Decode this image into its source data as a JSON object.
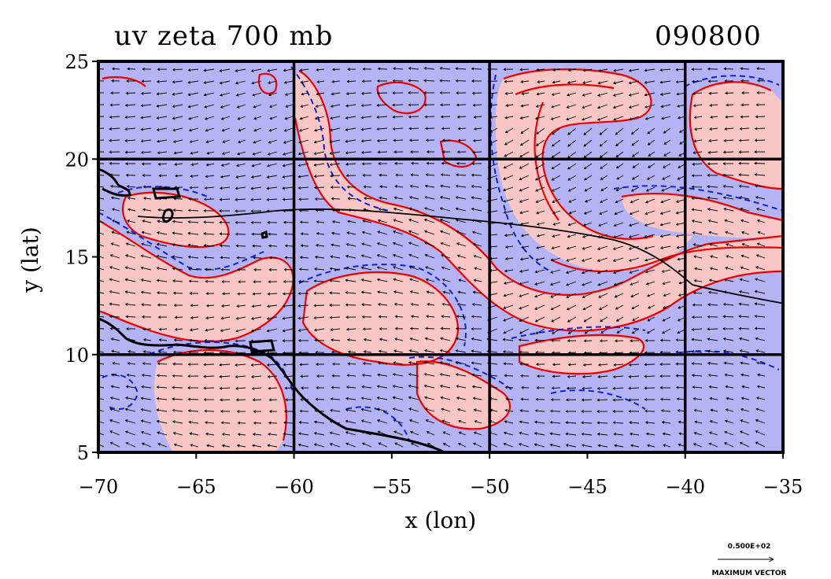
{
  "title_left": "uv zeta 700 mb",
  "title_right": "090800",
  "map": {
    "x_axis_label": "x (lon)",
    "y_axis_label": "y (lat)",
    "x_range": [
      -70,
      -35
    ],
    "y_range": [
      5,
      25
    ],
    "x_ticks": [
      "−70",
      "−65",
      "−60",
      "−55",
      "−50",
      "−45",
      "−40",
      "−35"
    ],
    "y_ticks": [
      "5",
      "10",
      "15",
      "20",
      "25"
    ],
    "grid_lines_lon": [
      -60,
      -50,
      -40
    ],
    "grid_lines_lat": [
      10,
      20
    ],
    "colors": {
      "positive_fill": "#f9c6c6",
      "negative_fill": "#b4b4f4",
      "positive_contour": "#ee0000",
      "negative_contour": "#1020dd",
      "coastline": "#000000"
    }
  },
  "legend": {
    "value": "0.500E+02",
    "label": "MAXIMUM VECTOR"
  }
}
